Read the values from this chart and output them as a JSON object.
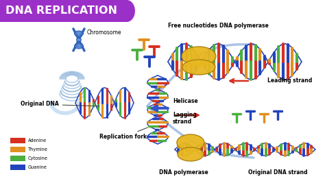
{
  "title": "DNA REPLICATION",
  "title_bg_color": "#9B30C8",
  "title_text_color": "#FFFFFF",
  "bg_color": "#FFFFFF",
  "RED": "#D63020",
  "ORG": "#E09020",
  "GRN": "#4BAF3F",
  "BLU": "#2244BB",
  "LBLU": "#88AADD",
  "GOLD": "#E8B820",
  "legend": [
    {
      "label": "Adenine",
      "color": "#D63020"
    },
    {
      "label": "Thymine",
      "color": "#E09020"
    },
    {
      "label": "Cytosine",
      "color": "#4BAF3F"
    },
    {
      "label": "Guanine",
      "color": "#2244BB"
    }
  ]
}
